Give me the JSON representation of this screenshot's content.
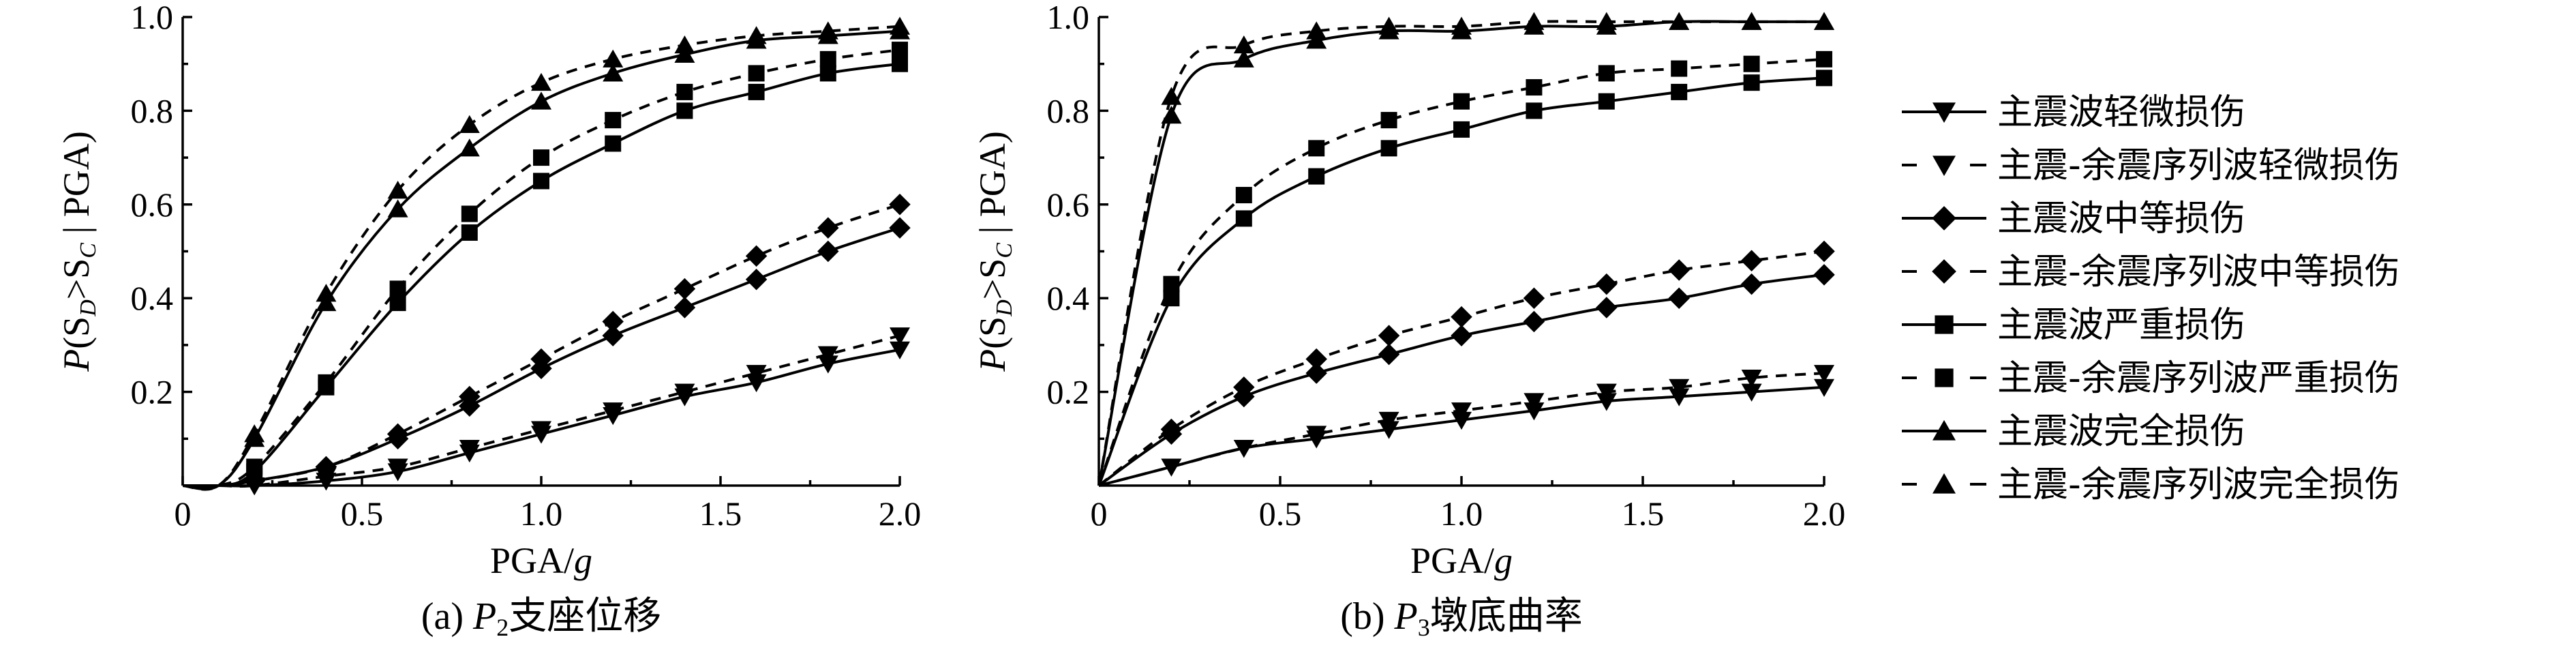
{
  "chart_data": [
    {
      "type": "line",
      "caption_prefix": "(a) ",
      "caption_var": "P",
      "caption_sub": "2",
      "caption_text": "支座位移",
      "xlabel_main": "PGA/",
      "xlabel_italic": "g",
      "ylabel_parts": [
        "P",
        "(S",
        "D",
        ">S",
        "C",
        " | PGA)"
      ],
      "xlim": [
        0,
        2.0
      ],
      "ylim": [
        0,
        1.0
      ],
      "xticks": [
        "0",
        "0.5",
        "1.0",
        "1.5",
        "2.0"
      ],
      "xtick_values": [
        0,
        0.5,
        1.0,
        1.5,
        2.0
      ],
      "yticks": [
        "0.2",
        "0.4",
        "0.6",
        "0.8",
        "1.0"
      ],
      "ytick_values": [
        0.2,
        0.4,
        0.6,
        0.8,
        1.0
      ],
      "x": [
        0.2,
        0.4,
        0.6,
        0.8,
        1.0,
        1.2,
        1.4,
        1.6,
        1.8,
        2.0
      ],
      "series": [
        {
          "name": "主震波轻微损伤",
          "marker": "triangle-down",
          "dashed": false,
          "values": [
            0.0,
            0.01,
            0.03,
            0.07,
            0.11,
            0.15,
            0.19,
            0.22,
            0.26,
            0.29
          ]
        },
        {
          "name": "主震-余震序列波轻微损伤",
          "marker": "triangle-down",
          "dashed": true,
          "values": [
            0.0,
            0.02,
            0.04,
            0.08,
            0.12,
            0.16,
            0.2,
            0.24,
            0.28,
            0.32
          ]
        },
        {
          "name": "主震波中等损伤",
          "marker": "diamond",
          "dashed": false,
          "values": [
            0.01,
            0.04,
            0.1,
            0.17,
            0.25,
            0.32,
            0.38,
            0.44,
            0.5,
            0.55
          ]
        },
        {
          "name": "主震-余震序列波中等损伤",
          "marker": "diamond",
          "dashed": true,
          "values": [
            0.01,
            0.04,
            0.11,
            0.19,
            0.27,
            0.35,
            0.42,
            0.49,
            0.55,
            0.6
          ]
        },
        {
          "name": "主震波严重损伤",
          "marker": "square",
          "dashed": false,
          "values": [
            0.03,
            0.21,
            0.39,
            0.54,
            0.65,
            0.73,
            0.8,
            0.84,
            0.88,
            0.9
          ]
        },
        {
          "name": "主震-余震序列波严重损伤",
          "marker": "square",
          "dashed": true,
          "values": [
            0.04,
            0.22,
            0.42,
            0.58,
            0.7,
            0.78,
            0.84,
            0.88,
            0.91,
            0.93
          ]
        },
        {
          "name": "主震波完全损伤",
          "marker": "triangle-up",
          "dashed": false,
          "values": [
            0.1,
            0.39,
            0.59,
            0.72,
            0.82,
            0.88,
            0.92,
            0.95,
            0.96,
            0.97
          ]
        },
        {
          "name": "主震-余震序列波完全损伤",
          "marker": "triangle-up",
          "dashed": true,
          "values": [
            0.11,
            0.41,
            0.63,
            0.77,
            0.86,
            0.91,
            0.94,
            0.96,
            0.97,
            0.98
          ]
        }
      ]
    },
    {
      "type": "line",
      "caption_prefix": "(b) ",
      "caption_var": "P",
      "caption_sub": "3",
      "caption_text": "墩底曲率",
      "xlabel_main": "PGA/",
      "xlabel_italic": "g",
      "ylabel_parts": [
        "P",
        "(S",
        "D",
        ">S",
        "C",
        " | PGA)"
      ],
      "xlim": [
        0,
        2.0
      ],
      "ylim": [
        0,
        1.0
      ],
      "xticks": [
        "0",
        "0.5",
        "1.0",
        "1.5",
        "2.0"
      ],
      "xtick_values": [
        0,
        0.5,
        1.0,
        1.5,
        2.0
      ],
      "yticks": [
        "0.2",
        "0.4",
        "0.6",
        "0.8",
        "1.0"
      ],
      "ytick_values": [
        0.2,
        0.4,
        0.6,
        0.8,
        1.0
      ],
      "x": [
        0.2,
        0.4,
        0.6,
        0.8,
        1.0,
        1.2,
        1.4,
        1.6,
        1.8,
        2.0
      ],
      "series": [
        {
          "name": "主震波轻微损伤",
          "marker": "triangle-down",
          "dashed": false,
          "values": [
            0.04,
            0.08,
            0.1,
            0.12,
            0.14,
            0.16,
            0.18,
            0.19,
            0.2,
            0.21
          ]
        },
        {
          "name": "主震-余震序列波轻微损伤",
          "marker": "triangle-down",
          "dashed": true,
          "values": [
            0.04,
            0.08,
            0.11,
            0.14,
            0.16,
            0.18,
            0.2,
            0.21,
            0.23,
            0.24
          ]
        },
        {
          "name": "主震波中等损伤",
          "marker": "diamond",
          "dashed": false,
          "values": [
            0.11,
            0.19,
            0.24,
            0.28,
            0.32,
            0.35,
            0.38,
            0.4,
            0.43,
            0.45
          ]
        },
        {
          "name": "主震-余震序列波中等损伤",
          "marker": "diamond",
          "dashed": true,
          "values": [
            0.12,
            0.21,
            0.27,
            0.32,
            0.36,
            0.4,
            0.43,
            0.46,
            0.48,
            0.5
          ]
        },
        {
          "name": "主震波严重损伤",
          "marker": "square",
          "dashed": false,
          "values": [
            0.4,
            0.57,
            0.66,
            0.72,
            0.76,
            0.8,
            0.82,
            0.84,
            0.86,
            0.87
          ]
        },
        {
          "name": "主震-余震序列波严重损伤",
          "marker": "square",
          "dashed": true,
          "values": [
            0.43,
            0.62,
            0.72,
            0.78,
            0.82,
            0.85,
            0.88,
            0.89,
            0.9,
            0.91
          ]
        },
        {
          "name": "主震波完全损伤",
          "marker": "triangle-up",
          "dashed": false,
          "values": [
            0.79,
            0.91,
            0.95,
            0.97,
            0.97,
            0.98,
            0.98,
            0.99,
            0.99,
            0.99
          ]
        },
        {
          "name": "主震-余震序列波完全损伤",
          "marker": "triangle-up",
          "dashed": true,
          "values": [
            0.83,
            0.94,
            0.97,
            0.98,
            0.98,
            0.99,
            0.99,
            0.99,
            0.99,
            0.99
          ]
        }
      ]
    }
  ],
  "legend": {
    "placement": "right",
    "items": [
      {
        "label": "主震波轻微损伤",
        "marker": "triangle-down",
        "dashed": false
      },
      {
        "label": "主震-余震序列波轻微损伤",
        "marker": "triangle-down",
        "dashed": true
      },
      {
        "label": "主震波中等损伤",
        "marker": "diamond",
        "dashed": false
      },
      {
        "label": "主震-余震序列波中等损伤",
        "marker": "diamond",
        "dashed": true
      },
      {
        "label": "主震波严重损伤",
        "marker": "square",
        "dashed": false
      },
      {
        "label": "主震-余震序列波严重损伤",
        "marker": "square",
        "dashed": true
      },
      {
        "label": "主震波完全损伤",
        "marker": "triangle-up",
        "dashed": false
      },
      {
        "label": "主震-余震序列波完全损伤",
        "marker": "triangle-up",
        "dashed": true
      }
    ]
  }
}
